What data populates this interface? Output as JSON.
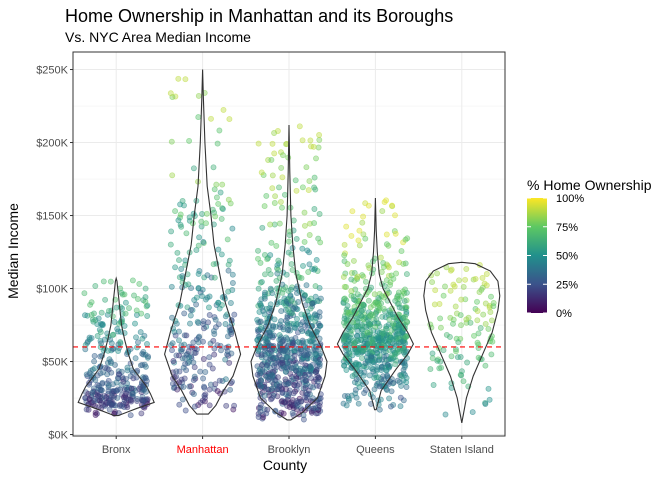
{
  "chart_data": {
    "type": "scatter",
    "subtype": "jitter-violin",
    "title": "Home Ownership in Manhattan and its Boroughs",
    "subtitle": "Vs. NYC Area Median Income",
    "xlabel": "County",
    "ylabel": "Median Income",
    "categories": [
      "Bronx",
      "Manhattan",
      "Brooklyn",
      "Queens",
      "Staten Island"
    ],
    "highlight_category": "Manhattan",
    "highlight_color": "#ff0000",
    "y_ticks": [
      {
        "value": 0,
        "label": "$0K"
      },
      {
        "value": 50000,
        "label": "$50K"
      },
      {
        "value": 100000,
        "label": "$100K"
      },
      {
        "value": 150000,
        "label": "$150K"
      },
      {
        "value": 200000,
        "label": "$200K"
      },
      {
        "value": 250000,
        "label": "$250K"
      }
    ],
    "ylim": [
      -1000,
      262000
    ],
    "reference_line": {
      "value": 60000,
      "style": "dashed",
      "color": "#ff0000"
    },
    "grid": true,
    "legend": {
      "title": "% Home Ownership",
      "position": "right",
      "type": "colorbar",
      "palette": "viridis",
      "palette_colors": [
        "#440154",
        "#3b528b",
        "#21908c",
        "#5dc863",
        "#fde725"
      ],
      "ticks": [
        {
          "value": 0,
          "label": "0%"
        },
        {
          "value": 0.25,
          "label": "25%"
        },
        {
          "value": 0.5,
          "label": "50%"
        },
        {
          "value": 0.75,
          "label": "75%"
        },
        {
          "value": 1,
          "label": "100%"
        }
      ]
    },
    "groups": [
      {
        "name": "Bronx",
        "n_points": 340,
        "income_range": [
          13000,
          107000
        ],
        "typical_ownership": [
          0.0,
          0.7
        ],
        "violin_outline": [
          [
            13000,
            0.05
          ],
          [
            18000,
            0.55
          ],
          [
            22000,
            1.0
          ],
          [
            28000,
            0.9
          ],
          [
            33000,
            0.8
          ],
          [
            38000,
            0.65
          ],
          [
            45000,
            0.45
          ],
          [
            55000,
            0.32
          ],
          [
            65000,
            0.22
          ],
          [
            75000,
            0.14
          ],
          [
            85000,
            0.1
          ],
          [
            95000,
            0.06
          ],
          [
            100000,
            0.04
          ],
          [
            105000,
            0.02
          ],
          [
            107000,
            0
          ]
        ]
      },
      {
        "name": "Manhattan",
        "n_points": 280,
        "income_range": [
          14000,
          250000
        ],
        "typical_ownership": [
          0.0,
          0.9
        ],
        "violin_outline": [
          [
            14000,
            0.15
          ],
          [
            20000,
            0.35
          ],
          [
            30000,
            0.55
          ],
          [
            40000,
            0.8
          ],
          [
            55000,
            1.0
          ],
          [
            70000,
            0.85
          ],
          [
            90000,
            0.6
          ],
          [
            110000,
            0.45
          ],
          [
            130000,
            0.3
          ],
          [
            150000,
            0.22
          ],
          [
            170000,
            0.12
          ],
          [
            200000,
            0.06
          ],
          [
            230000,
            0.02
          ],
          [
            250000,
            0
          ]
        ]
      },
      {
        "name": "Brooklyn",
        "n_points": 760,
        "income_range": [
          10000,
          212000
        ],
        "typical_ownership": [
          0.0,
          0.9
        ],
        "violin_outline": [
          [
            10000,
            0.05
          ],
          [
            15000,
            0.35
          ],
          [
            25000,
            0.75
          ],
          [
            40000,
            0.95
          ],
          [
            50000,
            1.0
          ],
          [
            60000,
            0.85
          ],
          [
            75000,
            0.55
          ],
          [
            90000,
            0.35
          ],
          [
            110000,
            0.18
          ],
          [
            130000,
            0.1
          ],
          [
            150000,
            0.05
          ],
          [
            180000,
            0.02
          ],
          [
            212000,
            0
          ]
        ]
      },
      {
        "name": "Queens",
        "n_points": 670,
        "income_range": [
          17000,
          162000
        ],
        "typical_ownership": [
          0.2,
          0.95
        ],
        "violin_outline": [
          [
            17000,
            0.02
          ],
          [
            30000,
            0.15
          ],
          [
            45000,
            0.55
          ],
          [
            55000,
            0.85
          ],
          [
            62000,
            1.0
          ],
          [
            70000,
            0.85
          ],
          [
            80000,
            0.6
          ],
          [
            90000,
            0.4
          ],
          [
            100000,
            0.2
          ],
          [
            110000,
            0.1
          ],
          [
            125000,
            0.05
          ],
          [
            140000,
            0.02
          ],
          [
            162000,
            0
          ]
        ]
      },
      {
        "name": "Staten Island",
        "n_points": 110,
        "income_range": [
          8000,
          118000
        ],
        "typical_ownership": [
          0.35,
          0.9
        ],
        "violin_outline": [
          [
            8000,
            0
          ],
          [
            15000,
            0.05
          ],
          [
            25000,
            0.12
          ],
          [
            40000,
            0.3
          ],
          [
            55000,
            0.55
          ],
          [
            70000,
            0.8
          ],
          [
            85000,
            0.95
          ],
          [
            95000,
            1.0
          ],
          [
            105000,
            0.95
          ],
          [
            112000,
            0.75
          ],
          [
            117000,
            0.35
          ],
          [
            118000,
            0
          ]
        ]
      }
    ]
  }
}
